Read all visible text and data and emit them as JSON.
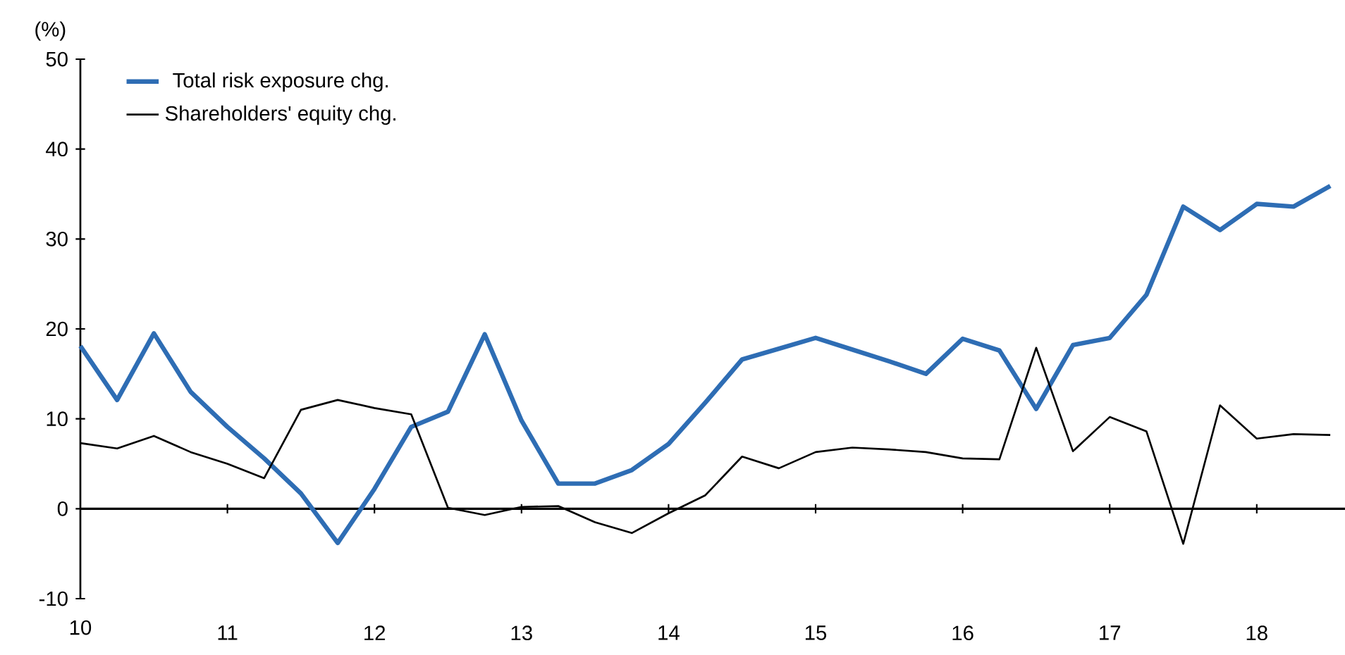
{
  "chart_data": {
    "type": "line",
    "ylabel": "(%)",
    "x": [
      10,
      10.25,
      10.5,
      10.75,
      11,
      11.25,
      11.5,
      11.75,
      12,
      12.25,
      12.5,
      12.75,
      13,
      13.25,
      13.5,
      13.75,
      14,
      14.25,
      14.5,
      14.75,
      15,
      15.25,
      15.5,
      15.75,
      16,
      16.25,
      16.5,
      16.75,
      17,
      17.25,
      17.5,
      17.75,
      18,
      18.25,
      18.5
    ],
    "series": [
      {
        "name": "Total risk exposure chg.",
        "color": "#2e6db4",
        "values": [
          18.1,
          12.1,
          19.5,
          13.0,
          9.1,
          5.6,
          1.7,
          -3.8,
          2.2,
          9.1,
          10.8,
          19.4,
          9.8,
          2.8,
          2.8,
          4.3,
          7.2,
          11.8,
          16.6,
          17.8,
          19.0,
          17.7,
          16.4,
          15.0,
          18.9,
          17.6,
          11.1,
          18.2,
          19.0,
          23.8,
          33.6,
          31.0,
          33.9,
          33.6,
          35.9
        ]
      },
      {
        "name": "Shareholders' equity chg.",
        "color": "#000000",
        "values": [
          7.3,
          6.7,
          8.1,
          6.3,
          5.0,
          3.4,
          11.0,
          12.1,
          11.2,
          10.5,
          0.1,
          -0.7,
          0.2,
          0.3,
          -1.5,
          -2.7,
          -0.5,
          1.5,
          5.8,
          4.5,
          6.3,
          6.8,
          6.6,
          6.3,
          5.6,
          5.5,
          17.9,
          6.4,
          10.2,
          8.6,
          -3.9,
          11.5,
          7.8,
          8.3,
          8.2
        ]
      }
    ],
    "xlim": [
      10,
      18.6
    ],
    "xticks": [
      10,
      11,
      12,
      13,
      14,
      15,
      16,
      17,
      18
    ],
    "ylim": [
      -10,
      50
    ],
    "yticks": [
      -10,
      0,
      10,
      20,
      30,
      40,
      50
    ],
    "legend": "top left"
  }
}
